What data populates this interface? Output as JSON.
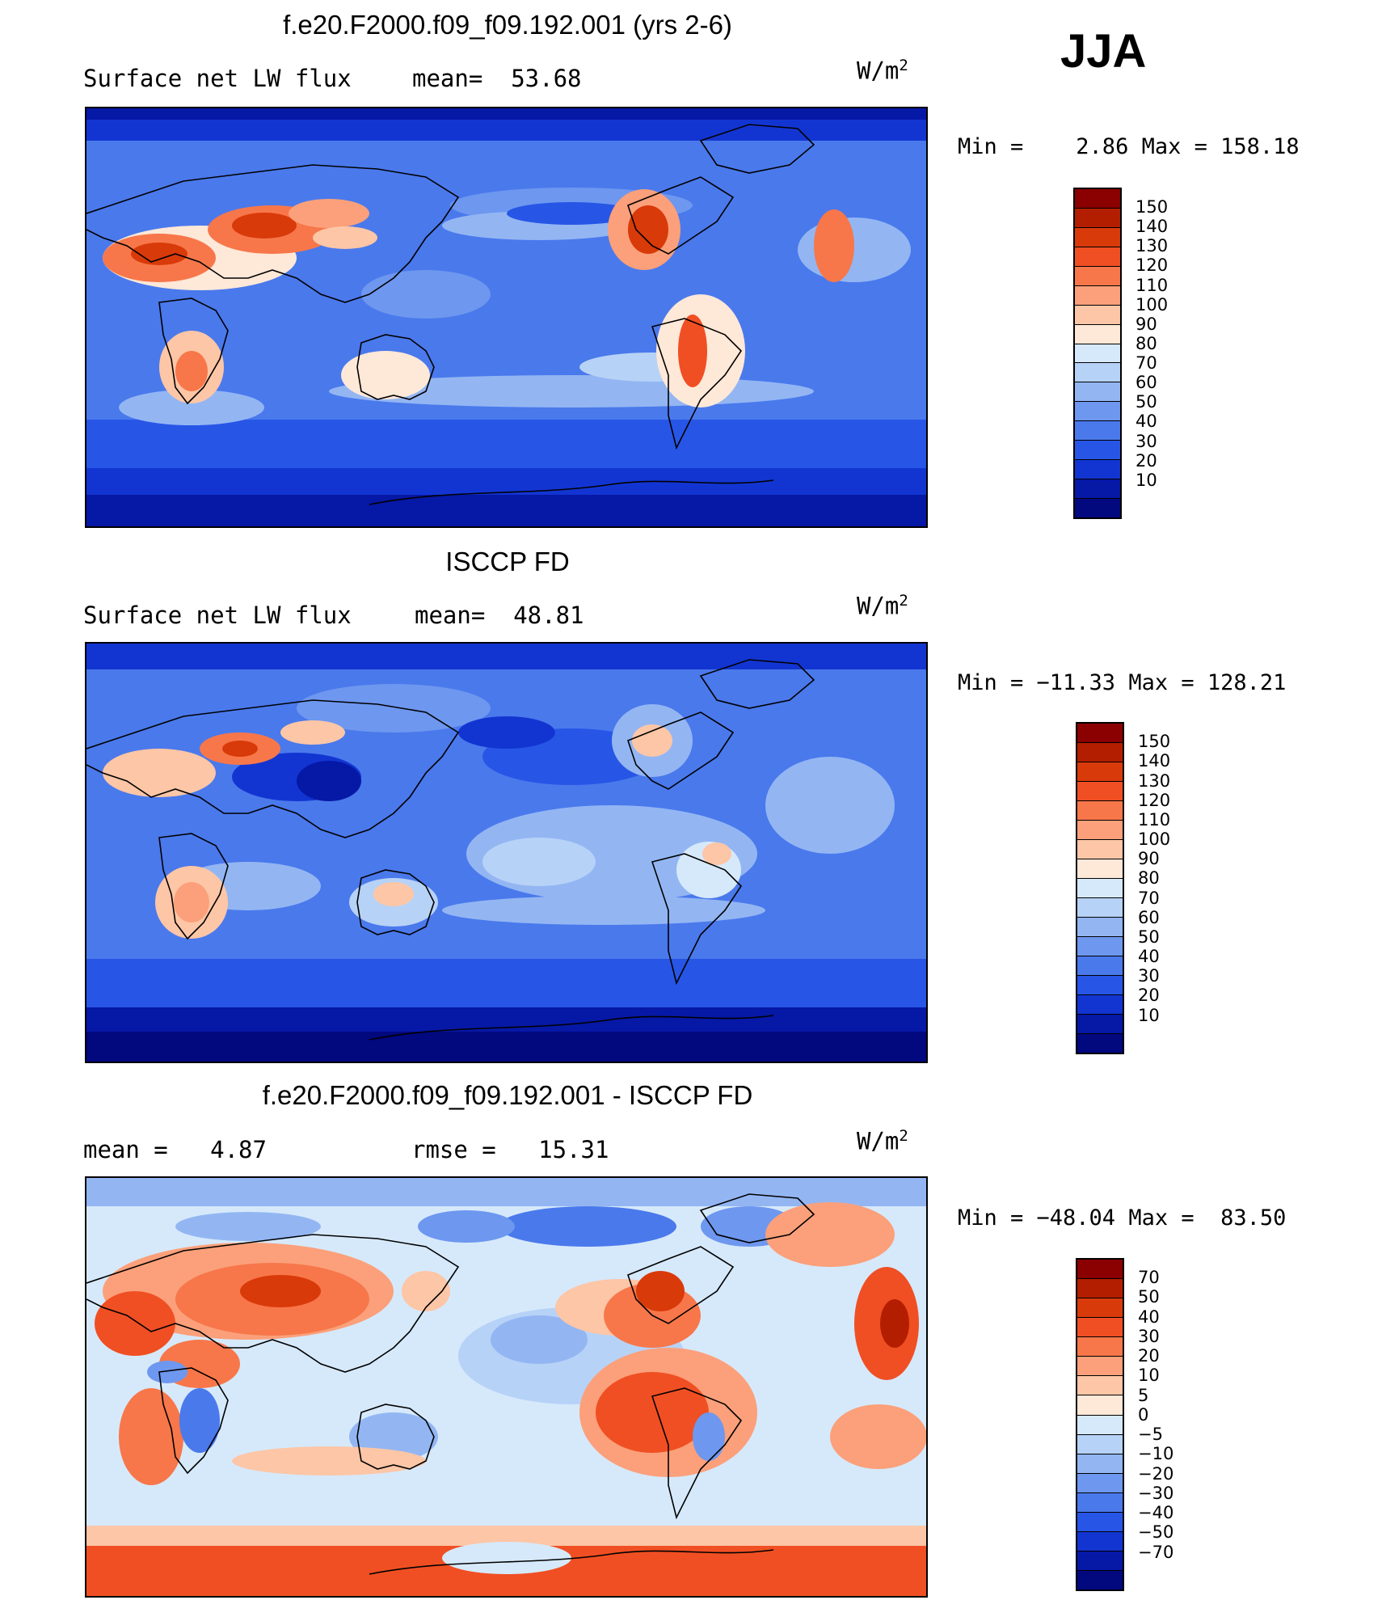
{
  "season": "JJA",
  "panels": [
    {
      "title": "f.e20.F2000.f09_f09.192.001 (yrs 2-6)",
      "left_text": "Surface net LW flux",
      "stat_text": "mean=  53.68",
      "units_base": "W/m",
      "units_exp": "2",
      "minmax": "Min =    2.86 Max = 158.18",
      "colorbar": {
        "colors": [
          "#8b0000",
          "#b41e00",
          "#d93a0a",
          "#f04f23",
          "#f7774a",
          "#fba07a",
          "#fdc6a6",
          "#fee8d8",
          "#d6e9fb",
          "#b7d2f7",
          "#93b6f3",
          "#6e97ef",
          "#4a79ec",
          "#2756e6",
          "#1235d2",
          "#0618a6",
          "#02087e"
        ],
        "labels": [
          "150",
          "140",
          "130",
          "120",
          "110",
          "100",
          "90",
          "80",
          "70",
          "60",
          "50",
          "40",
          "30",
          "20",
          "10"
        ]
      }
    },
    {
      "title": "ISCCP FD",
      "left_text": "Surface net LW flux",
      "stat_text": "mean=  48.81",
      "units_base": "W/m",
      "units_exp": "2",
      "minmax": "Min = −11.33 Max = 128.21",
      "colorbar": {
        "colors": [
          "#8b0000",
          "#b41e00",
          "#d93a0a",
          "#f04f23",
          "#f7774a",
          "#fba07a",
          "#fdc6a6",
          "#fee8d8",
          "#d6e9fb",
          "#b7d2f7",
          "#93b6f3",
          "#6e97ef",
          "#4a79ec",
          "#2756e6",
          "#1235d2",
          "#0618a6",
          "#02087e"
        ],
        "labels": [
          "150",
          "140",
          "130",
          "120",
          "110",
          "100",
          "90",
          "80",
          "70",
          "60",
          "50",
          "40",
          "30",
          "20",
          "10"
        ]
      }
    },
    {
      "title": "f.e20.F2000.f09_f09.192.001 - ISCCP FD",
      "left_text": "mean =   4.87",
      "stat_text": "rmse =   15.31",
      "units_base": "W/m",
      "units_exp": "2",
      "minmax": "Min = −48.04 Max =  83.50",
      "colorbar": {
        "colors": [
          "#8b0000",
          "#b41e00",
          "#d93a0a",
          "#f04f23",
          "#f7774a",
          "#fba07a",
          "#fdc6a6",
          "#fee8d8",
          "#d6e9fb",
          "#b7d2f7",
          "#93b6f3",
          "#6e97ef",
          "#4a79ec",
          "#2756e6",
          "#1235d2",
          "#0618a6",
          "#02087e"
        ],
        "labels": [
          "70",
          "50",
          "40",
          "30",
          "20",
          "10",
          "5",
          "0",
          "−5",
          "−10",
          "−20",
          "−30",
          "−40",
          "−50",
          "−70"
        ]
      }
    }
  ]
}
